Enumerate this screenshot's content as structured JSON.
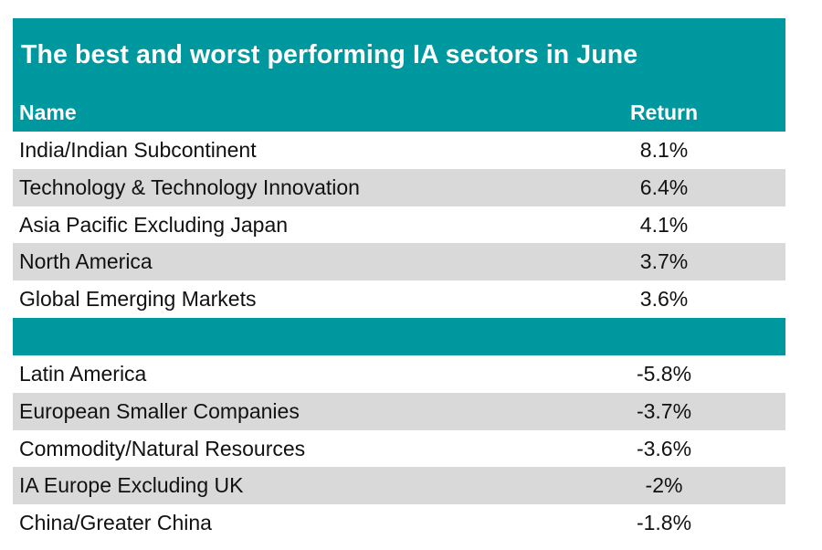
{
  "table": {
    "title": "The best and worst performing IA sectors in June",
    "columns": {
      "name": "Name",
      "return": "Return"
    },
    "best": [
      {
        "name": "India/Indian Subcontinent",
        "return": "8.1%"
      },
      {
        "name": "Technology & Technology Innovation",
        "return": "6.4%"
      },
      {
        "name": "Asia Pacific Excluding Japan",
        "return": "4.1%"
      },
      {
        "name": "North America",
        "return": "3.7%"
      },
      {
        "name": "Global Emerging Markets",
        "return": "3.6%"
      }
    ],
    "worst": [
      {
        "name": "Latin America",
        "return": "-5.8%"
      },
      {
        "name": "European Smaller Companies",
        "return": "-3.7%"
      },
      {
        "name": "Commodity/Natural Resources",
        "return": "-3.6%"
      },
      {
        "name": "IA Europe Excluding UK",
        "return": "-2%"
      },
      {
        "name": "China/Greater China",
        "return": "-1.8%"
      }
    ],
    "colors": {
      "header": "#00989F",
      "stripe": "#d9d9d9"
    }
  }
}
